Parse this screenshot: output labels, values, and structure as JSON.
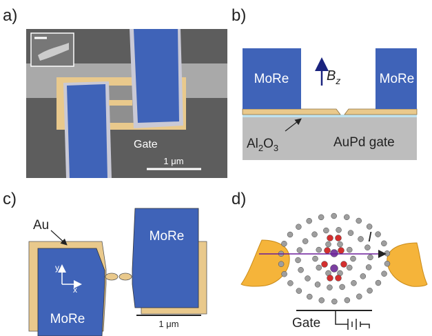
{
  "panels": [
    {
      "label": "a)",
      "gate": "Gate",
      "scale": "1 μm"
    },
    {
      "label": "b)",
      "left": "MoRe",
      "right": "MoRe",
      "field": {
        "symbol": "B",
        "sub": "z"
      },
      "oxide": [
        "Al",
        "2",
        "O",
        "3"
      ],
      "gate": "AuPd gate"
    },
    {
      "label": "c)",
      "au": "Au",
      "top": "MoRe",
      "bottom": "MoRe",
      "axis_y": "y",
      "axis_x": "x",
      "scale": "1 μm"
    },
    {
      "label": "d)",
      "current": "I",
      "gate": "Gate"
    }
  ]
}
